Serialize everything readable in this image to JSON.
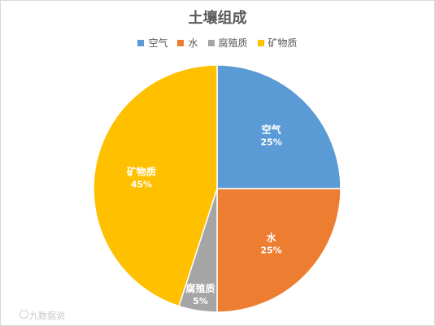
{
  "chart_data": {
    "type": "pie",
    "title": "土壤组成",
    "categories": [
      "空气",
      "水",
      "腐殖质",
      "矿物质"
    ],
    "values": [
      25,
      25,
      5,
      45
    ],
    "value_labels": [
      "25%",
      "25%",
      "5%",
      "45%"
    ],
    "colors": [
      "#5B9BD5",
      "#ED7D31",
      "#A5A5A5",
      "#FFC000"
    ],
    "legend_position": "top"
  },
  "watermark": "九数据说"
}
